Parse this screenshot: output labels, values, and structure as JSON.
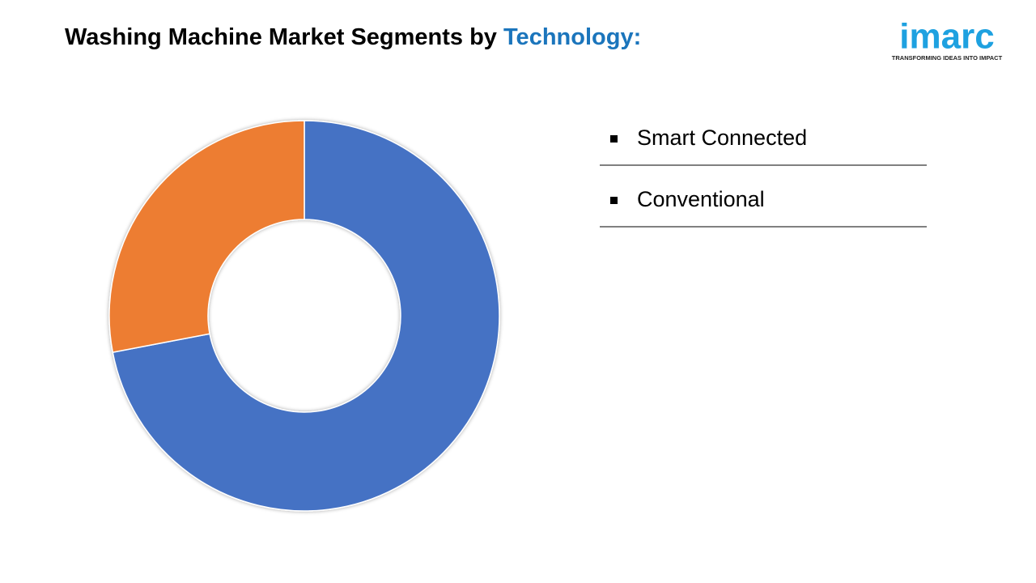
{
  "header": {
    "title": "Washing Machine Market Segments by",
    "title_highlight": "Technology:"
  },
  "logo": {
    "name": "imarc",
    "tagline": "TRANSFORMING IDEAS INTO IMPACT"
  },
  "chart_data": {
    "type": "donut",
    "categories": [
      "Smart Connected",
      "Conventional"
    ],
    "values": [
      72,
      28
    ],
    "colors": [
      "#4472c4",
      "#ed7d31"
    ],
    "legend": "right"
  }
}
